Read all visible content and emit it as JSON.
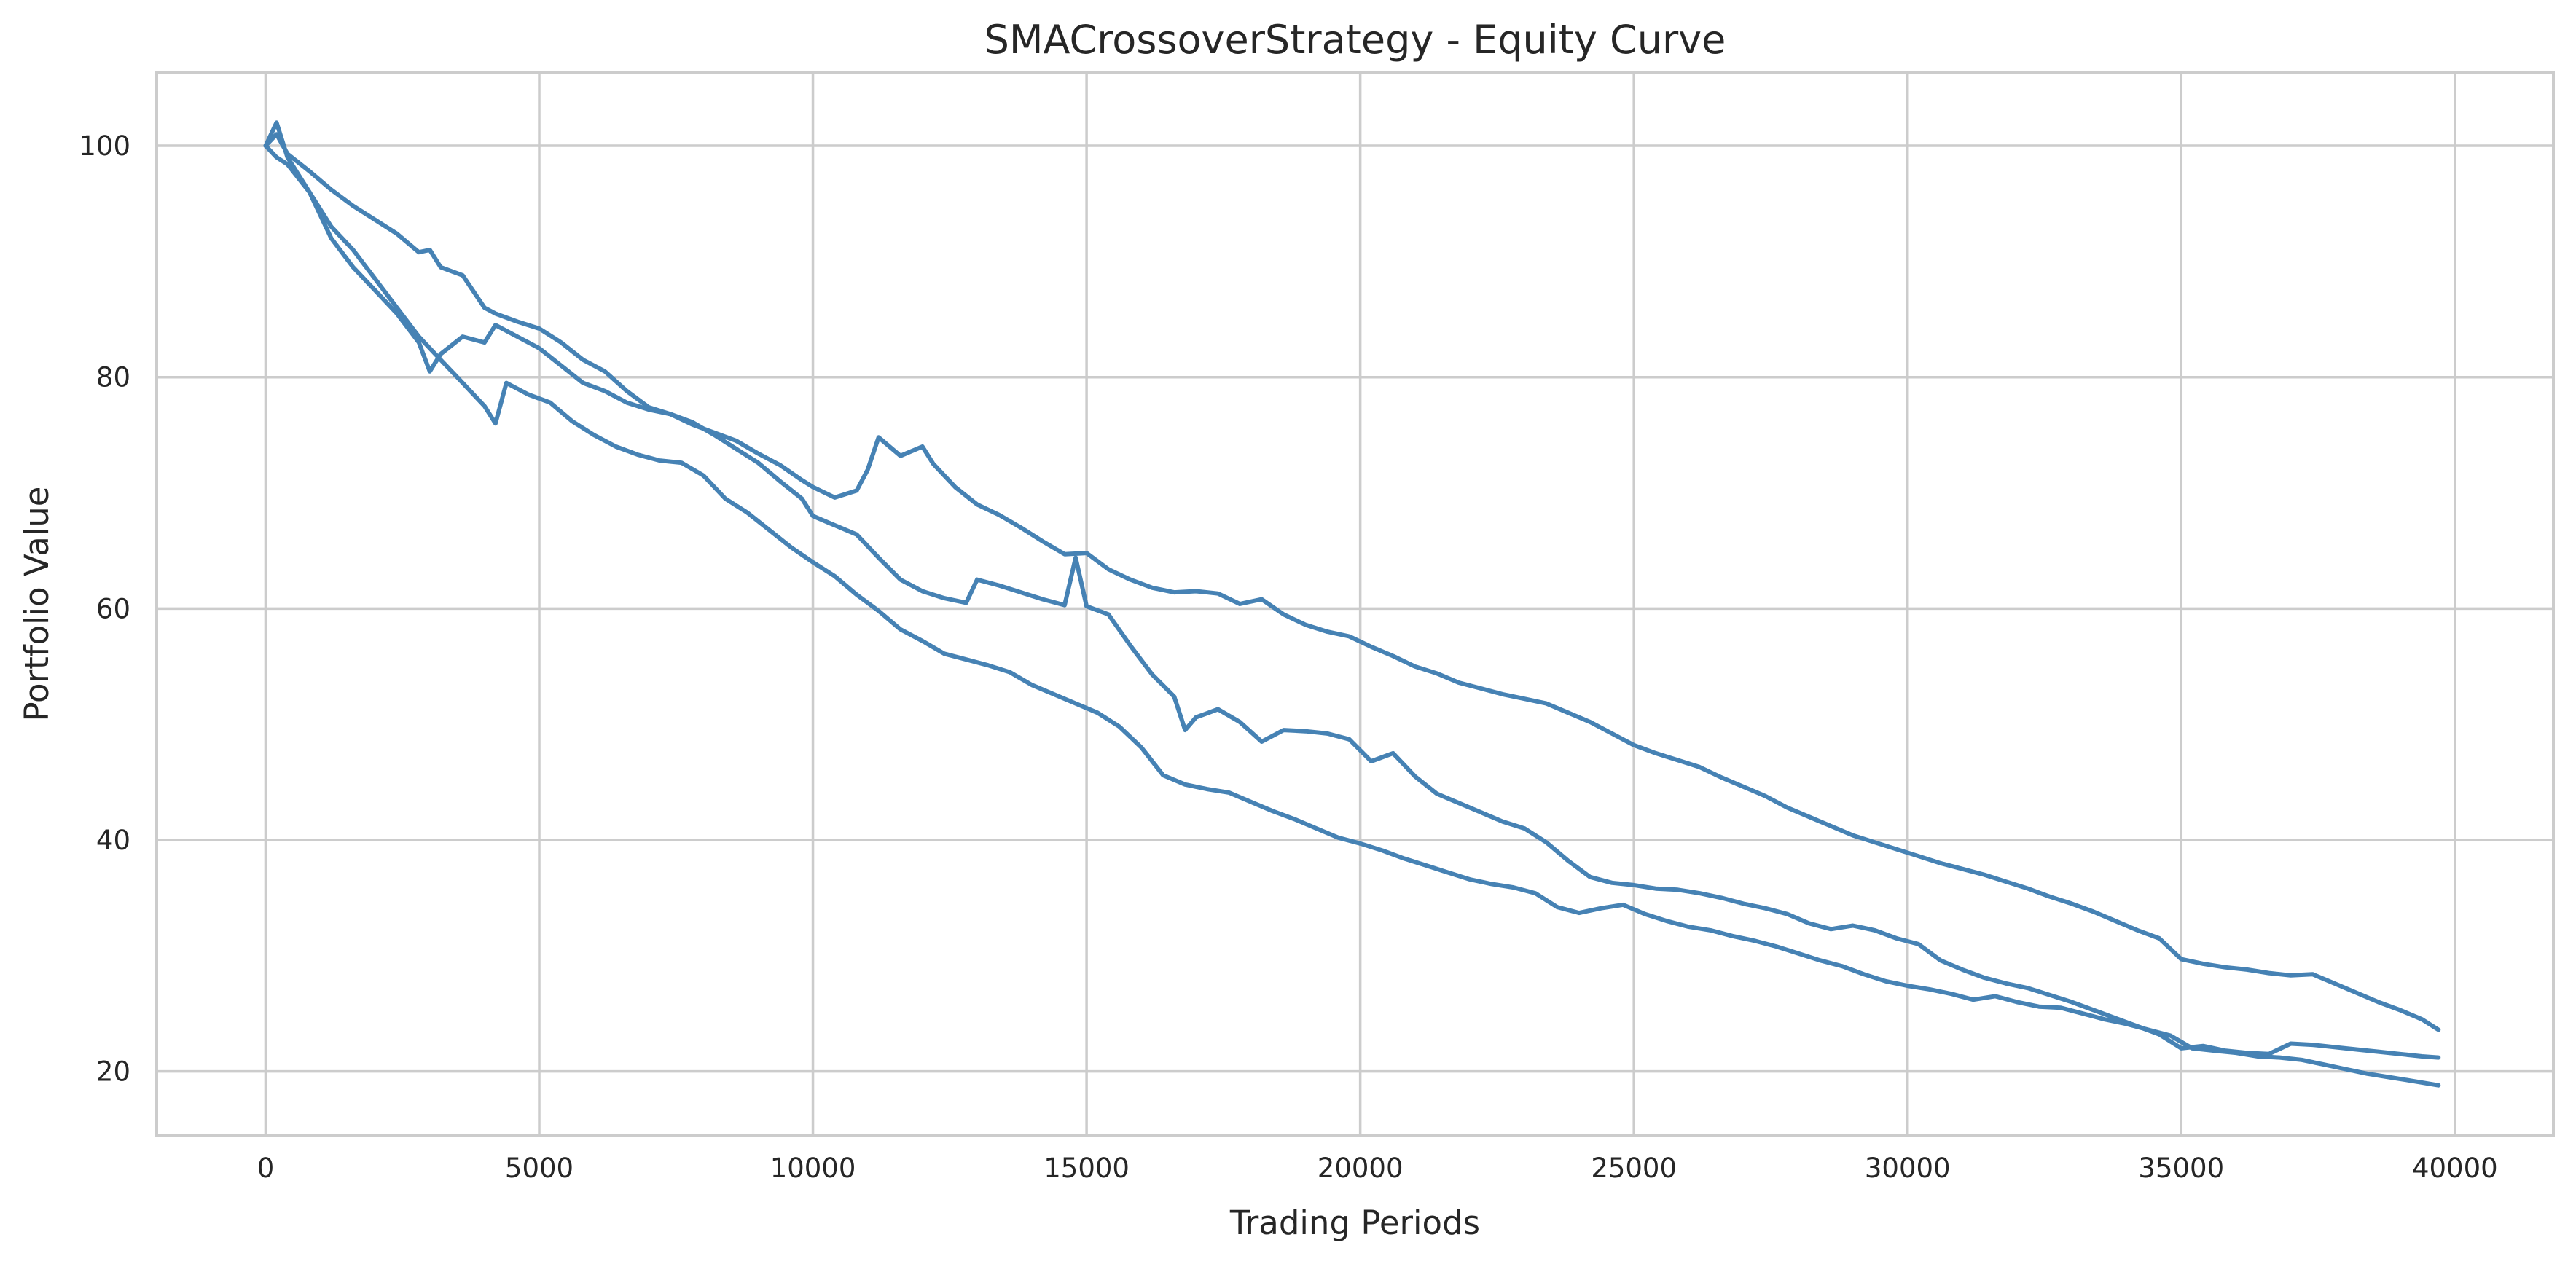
{
  "chart_data": {
    "type": "line",
    "title": "SMACrossoverStrategy - Equity Curve",
    "xlabel": "Trading Periods",
    "ylabel": "Portfolio Value",
    "xlim": [
      -1990,
      41800
    ],
    "ylim": [
      14.5,
      106.3
    ],
    "xticks": [
      0,
      5000,
      10000,
      15000,
      20000,
      25000,
      30000,
      35000,
      40000
    ],
    "yticks": [
      20,
      40,
      60,
      80,
      100
    ],
    "grid": true,
    "legend": "none",
    "line_color": "#4682b4",
    "series": [
      {
        "x": [
          0,
          200,
          400,
          800,
          1200,
          1600,
          2000,
          2400,
          2800,
          3000,
          3200,
          3600,
          4000,
          4200,
          4600,
          5000,
          5400,
          5800,
          6200,
          6600,
          7000,
          7400,
          7800,
          8200,
          8600,
          9000,
          9400,
          9800,
          10000,
          10400,
          10800,
          11000,
          11200,
          11600,
          12000,
          12200,
          12600,
          13000,
          13400,
          13800,
          14200,
          14600,
          15000,
          15400,
          15800,
          16200,
          16600,
          17000,
          17400,
          17800,
          18200,
          18600,
          19000,
          19400,
          19800,
          20200,
          20600,
          21000,
          21400,
          21800,
          22200,
          22600,
          23000,
          23400,
          23800,
          24200,
          24600,
          25000,
          25400,
          25800,
          26200,
          26600,
          27000,
          27400,
          27800,
          28200,
          28600,
          29000,
          29400,
          29800,
          30200,
          30600,
          31000,
          31400,
          31800,
          32200,
          32600,
          33000,
          33400,
          33800,
          34200,
          34600,
          35000,
          35400,
          35800,
          36200,
          36600,
          37000,
          37400,
          37800,
          38200,
          38600,
          39000,
          39400,
          39700
        ],
        "y": [
          100,
          101,
          99.3,
          97.8,
          96.2,
          94.8,
          93.6,
          92.4,
          90.8,
          91,
          89.5,
          88.8,
          86,
          85.5,
          84.8,
          84.2,
          83,
          81.5,
          80.5,
          78.8,
          77.4,
          76.8,
          75.9,
          75.2,
          74.5,
          73.4,
          72.4,
          71.1,
          70.5,
          69.6,
          70.2,
          72,
          74.8,
          73.2,
          74,
          72.5,
          70.5,
          69,
          68.1,
          67,
          65.8,
          64.7,
          64.8,
          63.4,
          62.5,
          61.8,
          61.4,
          61.5,
          61.3,
          60.4,
          60.8,
          59.5,
          58.6,
          58,
          57.6,
          56.7,
          55.9,
          55,
          54.4,
          53.6,
          53.1,
          52.6,
          52.2,
          51.8,
          51,
          50.2,
          49.2,
          48.2,
          47.5,
          46.9,
          46.3,
          45.4,
          44.6,
          43.8,
          42.8,
          42,
          41.2,
          40.4,
          39.8,
          39.2,
          38.6,
          38,
          37.5,
          37,
          36.4,
          35.8,
          35.1,
          34.5,
          33.8,
          33,
          32.2,
          31.5,
          29.7,
          29.3,
          29,
          28.8,
          28.5,
          28.3,
          28.4,
          27.6,
          26.8,
          26,
          25.3,
          24.5,
          23.6
        ]
      },
      {
        "x": [
          0,
          200,
          400,
          800,
          1200,
          1600,
          2000,
          2400,
          2800,
          3000,
          3200,
          3600,
          4000,
          4200,
          4600,
          5000,
          5400,
          5800,
          6200,
          6600,
          7000,
          7400,
          7800,
          8200,
          8600,
          9000,
          9400,
          9800,
          10000,
          10400,
          10800,
          11200,
          11600,
          12000,
          12400,
          12800,
          13000,
          13400,
          13800,
          14200,
          14600,
          14800,
          15000,
          15400,
          15800,
          16200,
          16600,
          16800,
          17000,
          17400,
          17800,
          18200,
          18600,
          19000,
          19400,
          19800,
          20200,
          20600,
          21000,
          21400,
          21800,
          22200,
          22600,
          23000,
          23400,
          23800,
          24200,
          24600,
          25000,
          25400,
          25800,
          26200,
          26600,
          27000,
          27400,
          27800,
          28200,
          28600,
          29000,
          29400,
          29800,
          30200,
          30600,
          31000,
          31400,
          31800,
          32200,
          32600,
          33000,
          33400,
          33800,
          34200,
          34600,
          35000,
          35400,
          35800,
          36200,
          36600,
          37000,
          37400,
          37800,
          38200,
          38600,
          39000,
          39400,
          39700
        ],
        "y": [
          100,
          102,
          99,
          96,
          92,
          89.5,
          87.5,
          85.5,
          83,
          80.5,
          82,
          83.5,
          83,
          84.5,
          83.5,
          82.5,
          81,
          79.5,
          78.8,
          77.8,
          77.2,
          76.8,
          76.1,
          75,
          73.8,
          72.6,
          71,
          69.5,
          68,
          67.2,
          66.4,
          64.4,
          62.5,
          61.5,
          60.9,
          60.5,
          62.5,
          62,
          61.4,
          60.8,
          60.3,
          64.4,
          60.2,
          59.5,
          56.8,
          54.3,
          52.4,
          49.5,
          50.6,
          51.3,
          50.2,
          48.5,
          49.5,
          49.4,
          49.2,
          48.7,
          46.8,
          47.5,
          45.5,
          44,
          43.2,
          42.4,
          41.6,
          41,
          39.8,
          38.2,
          36.8,
          36.3,
          36.1,
          35.8,
          35.7,
          35.4,
          35,
          34.5,
          34.1,
          33.6,
          32.8,
          32.3,
          32.6,
          32.2,
          31.5,
          31,
          29.6,
          28.8,
          28.1,
          27.6,
          27.2,
          26.6,
          26,
          25.3,
          24.6,
          23.9,
          23.2,
          22,
          22.2,
          21.8,
          21.6,
          21.5,
          22.4,
          22.3,
          22.1,
          21.9,
          21.7,
          21.5,
          21.3,
          21.2
        ]
      },
      {
        "x": [
          0,
          200,
          400,
          800,
          1200,
          1600,
          2000,
          2400,
          2800,
          3200,
          3600,
          4000,
          4200,
          4400,
          4800,
          5200,
          5600,
          6000,
          6400,
          6800,
          7200,
          7600,
          8000,
          8400,
          8800,
          9200,
          9600,
          10000,
          10400,
          10800,
          11200,
          11600,
          12000,
          12400,
          12800,
          13200,
          13600,
          14000,
          14400,
          14800,
          15200,
          15600,
          16000,
          16400,
          16800,
          17200,
          17600,
          18000,
          18400,
          18800,
          19200,
          19600,
          20000,
          20400,
          20800,
          21200,
          21600,
          22000,
          22400,
          22800,
          23200,
          23600,
          24000,
          24400,
          24800,
          25200,
          25600,
          26000,
          26400,
          26800,
          27200,
          27600,
          28000,
          28400,
          28800,
          29200,
          29600,
          30000,
          30400,
          30800,
          31200,
          31600,
          32000,
          32400,
          32800,
          33200,
          33600,
          34000,
          34400,
          34800,
          35200,
          35600,
          36000,
          36400,
          36800,
          37200,
          37600,
          38000,
          38400,
          38800,
          39200,
          39700
        ],
        "y": [
          100,
          99,
          98.4,
          96,
          93,
          91,
          88.5,
          86,
          83.5,
          81.5,
          79.5,
          77.5,
          76,
          79.5,
          78.5,
          77.8,
          76.2,
          75,
          74,
          73.3,
          72.8,
          72.6,
          71.5,
          69.5,
          68.3,
          66.8,
          65.3,
          64,
          62.8,
          61.2,
          59.8,
          58.2,
          57.2,
          56.1,
          55.6,
          55.1,
          54.5,
          53.4,
          52.6,
          51.8,
          51,
          49.8,
          48,
          45.6,
          44.8,
          44.4,
          44.1,
          43.3,
          42.5,
          41.8,
          41,
          40.2,
          39.7,
          39.1,
          38.4,
          37.8,
          37.2,
          36.6,
          36.2,
          35.9,
          35.4,
          34.2,
          33.7,
          34.1,
          34.4,
          33.6,
          33,
          32.5,
          32.2,
          31.7,
          31.3,
          30.8,
          30.2,
          29.6,
          29.1,
          28.4,
          27.8,
          27.4,
          27.1,
          26.7,
          26.2,
          26.5,
          26,
          25.6,
          25.5,
          25,
          24.5,
          24.1,
          23.6,
          23.1,
          22,
          21.8,
          21.6,
          21.3,
          21.2,
          21,
          20.6,
          20.2,
          19.8,
          19.5,
          19.2,
          18.8
        ]
      }
    ]
  }
}
